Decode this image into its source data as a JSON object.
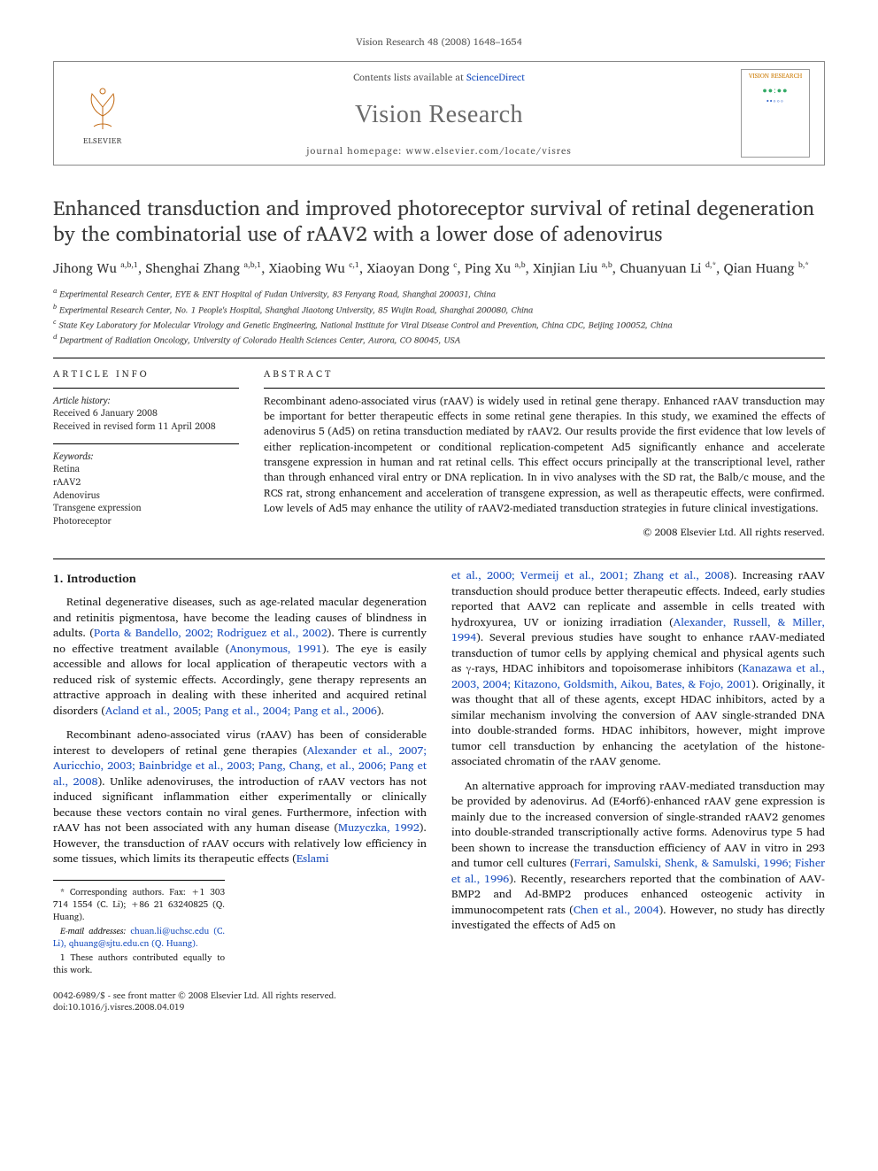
{
  "top_line": "Vision Research 48 (2008) 1648–1654",
  "header": {
    "publisher": "ELSEVIER",
    "contents_pre": "Contents lists available at ",
    "contents_link": "ScienceDirect",
    "journal": "Vision Research",
    "homepage_pre": "journal homepage: ",
    "homepage": "www.elsevier.com/locate/visres",
    "cover_title": "VISION RESEARCH"
  },
  "title": "Enhanced transduction and improved photoreceptor survival of retinal degeneration by the combinatorial use of rAAV2 with a lower dose of adenovirus",
  "authors_html": "Jihong Wu <sup>a,b,1</sup>, Shenghai Zhang <sup>a,b,1</sup>, Xiaobing Wu <sup>c,1</sup>, Xiaoyan Dong <sup>c</sup>, Ping Xu <sup>a,b</sup>, Xinjian Liu <sup>a,b</sup>, Chuanyuan Li <sup>d,*</sup>, Qian Huang <sup>b,*</sup>",
  "affiliations": [
    "a Experimental Research Center, EYE & ENT Hospital of Fudan University, 83 Fenyang Road, Shanghai 200031, China",
    "b Experimental Research Center, No. 1 People's Hospital, Shanghai Jiaotong University, 85 Wujin Road, Shanghai 200080, China",
    "c State Key Laboratory for Molecular Virology and Genetic Engineering, National Institute for Viral Disease Control and Prevention, China CDC, Beijing 100052, China",
    "d Department of Radiation Oncology, University of Colorado Health Sciences Center, Aurora, CO 80045, USA"
  ],
  "article_info_head": "ARTICLE INFO",
  "abstract_head": "ABSTRACT",
  "history_label": "Article history:",
  "history": [
    "Received 6 January 2008",
    "Received in revised form 11 April 2008"
  ],
  "keywords_label": "Keywords:",
  "keywords": [
    "Retina",
    "rAAV2",
    "Adenovirus",
    "Transgene expression",
    "Photoreceptor"
  ],
  "abstract": "Recombinant adeno-associated virus (rAAV) is widely used in retinal gene therapy. Enhanced rAAV transduction may be important for better therapeutic effects in some retinal gene therapies. In this study, we examined the effects of adenovirus 5 (Ad5) on retina transduction mediated by rAAV2. Our results provide the first evidence that low levels of either replication-incompetent or conditional replication-competent Ad5 significantly enhance and accelerate transgene expression in human and rat retinal cells. This effect occurs principally at the transcriptional level, rather than through enhanced viral entry or DNA replication. In in vivo analyses with the SD rat, the Balb/c mouse, and the RCS rat, strong enhancement and acceleration of transgene expression, as well as therapeutic effects, were confirmed. Low levels of Ad5 may enhance the utility of rAAV2-mediated transduction strategies in future clinical investigations.",
  "copyright": "© 2008 Elsevier Ltd. All rights reserved.",
  "section1_head": "1. Introduction",
  "para1": "Retinal degenerative diseases, such as age-related macular degeneration and retinitis pigmentosa, have become the leading causes of blindness in adults. (Porta & Bandello, 2002; Rodriguez et al., 2002). There is currently no effective treatment available (Anonymous, 1991). The eye is easily accessible and allows for local application of therapeutic vectors with a reduced risk of systemic effects. Accordingly, gene therapy represents an attractive approach in dealing with these inherited and acquired retinal disorders (Acland et al., 2005; Pang et al., 2004; Pang et al., 2006).",
  "para2": "Recombinant adeno-associated virus (rAAV) has been of considerable interest to developers of retinal gene therapies (Alexander et al., 2007; Auricchio, 2003; Bainbridge et al., 2003; Pang, Chang, et al., 2006; Pang et al., 2008). Unlike adenoviruses, the introduction of rAAV vectors has not induced significant inflammation either experimentally or clinically because these vectors contain no viral genes. Furthermore, infection with rAAV has not been associated with any human disease (Muzyczka, 1992). However, the transduction of rAAV occurs with relatively low efficiency in some tissues, which limits its therapeutic effects (Eslami",
  "para3": "et al., 2000; Vermeij et al., 2001; Zhang et al., 2008). Increasing rAAV transduction should produce better therapeutic effects. Indeed, early studies reported that AAV2 can replicate and assemble in cells treated with hydroxyurea, UV or ionizing irradiation (Alexander, Russell, & Miller, 1994). Several previous studies have sought to enhance rAAV-mediated transduction of tumor cells by applying chemical and physical agents such as γ-rays, HDAC inhibitors and topoisomerase inhibitors (Kanazawa et al., 2003, 2004; Kitazono, Goldsmith, Aikou, Bates, & Fojo, 2001). Originally, it was thought that all of these agents, except HDAC inhibitors, acted by a similar mechanism involving the conversion of AAV single-stranded DNA into double-stranded forms. HDAC inhibitors, however, might improve tumor cell transduction by enhancing the acetylation of the histone-associated chromatin of the rAAV genome.",
  "para4": "An alternative approach for improving rAAV-mediated transduction may be provided by adenovirus. Ad (E4orf6)-enhanced rAAV gene expression is mainly due to the increased conversion of single-stranded rAAV2 genomes into double-stranded transcriptionally active forms. Adenovirus type 5 had been shown to increase the transduction efficiency of AAV in vitro in 293 and tumor cell cultures (Ferrari, Samulski, Shenk, & Samulski, 1996; Fisher et al., 1996). Recently, researchers reported that the combination of AAV-BMP2 and Ad-BMP2 produces enhanced osteogenic activity in immunocompetent rats (Chen et al., 2004). However, no study has directly investigated the effects of Ad5 on",
  "footnotes": {
    "corr": "* Corresponding authors. Fax: +1 303 714 1554 (C. Li); +86 21 63240825 (Q. Huang).",
    "emails_label": "E-mail addresses:",
    "emails": " chuan.li@uchsc.edu (C. Li), qhuang@sjtu.edu.cn (Q. Huang).",
    "equal": "1 These authors contributed equally to this work."
  },
  "bottom": {
    "line1": "0042-6989/$ - see front matter © 2008 Elsevier Ltd. All rights reserved.",
    "line2": "doi:10.1016/j.visres.2008.04.019"
  },
  "colors": {
    "link": "#1a4fbf",
    "text": "#2a2a2a",
    "journal_gray": "#6a6a6a",
    "elsevier_orange": "#c26a14"
  }
}
